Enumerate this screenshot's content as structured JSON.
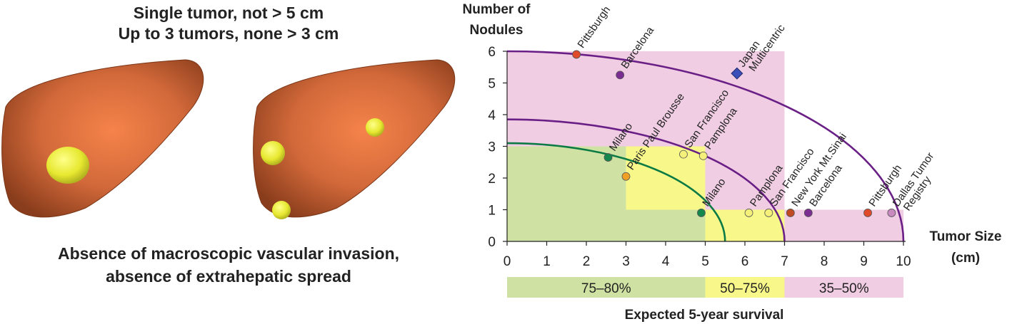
{
  "criteria": {
    "top_line_1": "Single tumor, not > 5 cm",
    "top_line_2": "Up to 3 tumors, none > 3 cm",
    "bottom_line_1": "Absence of macroscopic vascular invasion,",
    "bottom_line_2": "absence of extrahepatic spread"
  },
  "colors": {
    "green_zone": "#cfe2a4",
    "yellow_zone": "#f8f88a",
    "pink_zone": "#f0cde3",
    "milano_curve": "#0c7a45",
    "outer_curves": "#6a1f86",
    "liver": "#b55a2b",
    "tumor": "#e6e830"
  },
  "chart_data": {
    "type": "scatter",
    "ylabel_line1": "Number of",
    "ylabel_line2": "Nodules",
    "xlabel_line1": "Tumor Size",
    "xlabel_line2": "(cm)",
    "xlim": [
      0,
      10
    ],
    "ylim": [
      0,
      6
    ],
    "x_ticks": [
      "0",
      "1",
      "2",
      "3",
      "4",
      "5",
      "6",
      "7",
      "8",
      "9",
      "10"
    ],
    "y_ticks": [
      "0",
      "1",
      "2",
      "3",
      "4",
      "5",
      "6"
    ],
    "regions": [
      {
        "zone": "green",
        "rects": [
          [
            0,
            0,
            5,
            3
          ]
        ]
      },
      {
        "zone": "yellow",
        "rects": [
          [
            3,
            1,
            5,
            3
          ],
          [
            5,
            0,
            7,
            1
          ]
        ]
      },
      {
        "zone": "pink",
        "rects": [
          [
            0,
            3,
            7,
            6
          ],
          [
            5,
            1,
            7,
            3
          ],
          [
            7,
            0,
            10,
            1
          ]
        ]
      }
    ],
    "curves": [
      {
        "a": 5.5,
        "b": 3.1,
        "color": "milano_curve"
      },
      {
        "a": 7.0,
        "b": 3.85,
        "color": "outer_curves"
      },
      {
        "a": 10.0,
        "b": 6.0,
        "color": "outer_curves"
      }
    ],
    "points": [
      {
        "label": "Pittsburgh",
        "x": 1.75,
        "y": 5.9,
        "fill": "#e04a2a",
        "shape": "circle"
      },
      {
        "label": "Barcelona",
        "x": 2.85,
        "y": 5.25,
        "fill": "#7b2d92",
        "shape": "circle"
      },
      {
        "label": "Japan",
        "label2": "Multicentric",
        "x": 5.8,
        "y": 5.3,
        "fill": "#3b4fb8",
        "shape": "diamond"
      },
      {
        "label": "Milano",
        "x": 2.55,
        "y": 2.65,
        "fill": "#14874c",
        "shape": "circle"
      },
      {
        "label": "Paris Paul Brousse",
        "x": 3.0,
        "y": 2.05,
        "fill": "#f0a024",
        "shape": "circle"
      },
      {
        "label": "San Francisco",
        "x": 4.45,
        "y": 2.75,
        "fill": "#f5f07a",
        "shape": "circle"
      },
      {
        "label": "Pamplona",
        "x": 4.95,
        "y": 2.7,
        "fill": "#f5f07a",
        "shape": "circle"
      },
      {
        "label": "Milano",
        "x": 4.9,
        "y": 0.9,
        "fill": "#14874c",
        "shape": "circle"
      },
      {
        "label": "Pamplona",
        "x": 6.1,
        "y": 0.9,
        "fill": "#f5f07a",
        "shape": "circle"
      },
      {
        "label": "San Francisco",
        "x": 6.6,
        "y": 0.9,
        "fill": "#f5f07a",
        "shape": "circle"
      },
      {
        "label": "New York Mt.Sinai",
        "x": 7.15,
        "y": 0.9,
        "fill": "#c04a22",
        "shape": "circle"
      },
      {
        "label": "Barcelona",
        "x": 7.6,
        "y": 0.9,
        "fill": "#7b2d92",
        "shape": "circle"
      },
      {
        "label": "Pittsburgh",
        "x": 9.1,
        "y": 0.9,
        "fill": "#e04a2a",
        "shape": "circle"
      },
      {
        "label": "Dallas Tumor",
        "label2": "Registry",
        "x": 9.7,
        "y": 0.9,
        "fill": "#c98ac0",
        "shape": "circle"
      }
    ],
    "survival_bar": {
      "title": "Expected 5-year survival",
      "segments": [
        {
          "label": "75–80%",
          "from": 0,
          "to": 5,
          "zone": "green"
        },
        {
          "label": "50–75%",
          "from": 5,
          "to": 7,
          "zone": "yellow"
        },
        {
          "label": "35–50%",
          "from": 7,
          "to": 10,
          "zone": "pink"
        }
      ]
    }
  }
}
